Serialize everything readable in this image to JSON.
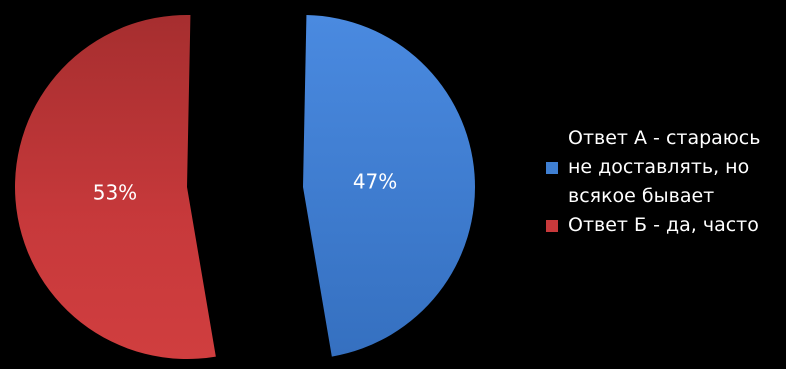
{
  "chart_data": {
    "type": "pie",
    "title": "",
    "slices": [
      {
        "label": "Ответ А - стараюсь не доставлять, но всякое бывает",
        "label_lines": [
          "Ответ А - стараюсь",
          "не доставлять, но",
          "всякое бывает"
        ],
        "value": 47,
        "display": "47%",
        "color": "#3f7fd2"
      },
      {
        "label": "Ответ Б - да, часто",
        "label_lines": [
          "Ответ Б - да, часто"
        ],
        "value": 53,
        "display": "53%",
        "color": "#c8393b"
      }
    ],
    "legend_position": "right",
    "exploded": true
  }
}
